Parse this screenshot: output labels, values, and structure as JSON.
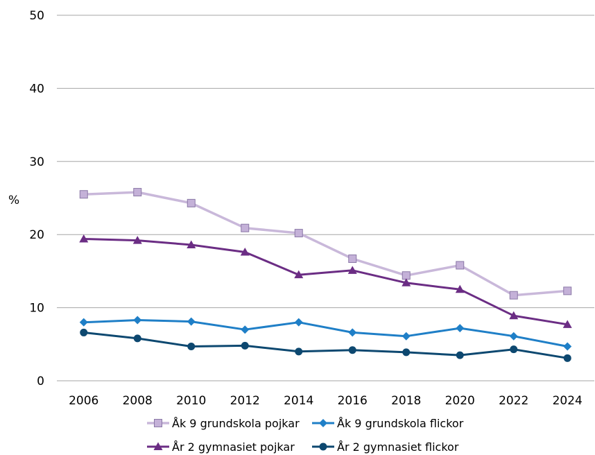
{
  "chart_data": {
    "type": "line",
    "title": "",
    "xlabel": "",
    "ylabel": "%",
    "x": [
      "2006",
      "2008",
      "2010",
      "2012",
      "2014",
      "2016",
      "2018",
      "2020",
      "2022",
      "2024"
    ],
    "ylim": [
      0,
      50
    ],
    "yticks": [
      0,
      10,
      20,
      30,
      40,
      50
    ],
    "grid": true,
    "legend_position": "bottom",
    "series": [
      {
        "name": "Åk 9 grundskola pojkar",
        "color": "#c9b8da",
        "marker": "square",
        "values": [
          25.5,
          25.8,
          24.3,
          20.9,
          20.2,
          16.7,
          14.4,
          15.8,
          11.7,
          12.3
        ]
      },
      {
        "name": "Åk 9 grundskola flickor",
        "color": "#1f7fc7",
        "marker": "diamond",
        "values": [
          8.0,
          8.3,
          8.1,
          7.0,
          8.0,
          6.6,
          6.1,
          7.2,
          6.1,
          4.7
        ]
      },
      {
        "name": "År 2 gymnasiet pojkar",
        "color": "#6b2d84",
        "marker": "triangle",
        "values": [
          19.4,
          19.2,
          18.6,
          17.6,
          14.5,
          15.1,
          13.4,
          12.5,
          8.9,
          7.7
        ]
      },
      {
        "name": "År 2 gymnasiet flickor",
        "color": "#0d4870",
        "marker": "circle",
        "values": [
          6.6,
          5.8,
          4.7,
          4.8,
          4.0,
          4.2,
          3.9,
          3.5,
          4.3,
          3.1
        ]
      }
    ]
  }
}
